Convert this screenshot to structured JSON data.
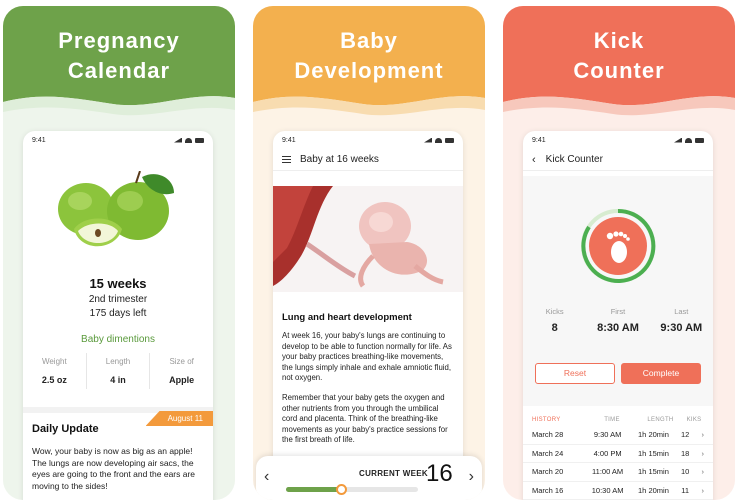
{
  "colors": {
    "green": "#6ea24a",
    "orange": "#f3b04e",
    "coral": "#ef7059"
  },
  "status_time": "9:41",
  "panels": [
    {
      "title_line1": "Pregnancy",
      "title_line2": "Calendar"
    },
    {
      "title_line1": "Baby",
      "title_line2": "Development"
    },
    {
      "title_line1": "Kick",
      "title_line2": "Counter"
    }
  ],
  "calendar": {
    "image_icon": "green-apple-image",
    "week": "15 weeks",
    "trimester": "2nd trimester",
    "days_left": "175 days left",
    "dimensions_link": "Baby dimentions",
    "stats": [
      {
        "label": "Weight",
        "value": "2.5 oz"
      },
      {
        "label": "Length",
        "value": "4 in"
      },
      {
        "label": "Size of",
        "value": "Apple"
      }
    ],
    "update_title": "Daily Update",
    "update_date": "August 11",
    "update_text": "Wow, your baby is now as big as an apple! The lungs are now developing air sacs, the eyes are going to the front and the ears are moving to the sides!"
  },
  "development": {
    "app_title": "Baby at 16 weeks",
    "image_icon": "fetus-illustration",
    "article_title": "Lung and heart development",
    "para1": "At week 16, your baby's lungs are continuing to develop to be able to function normally for life. As your baby practices breathing-like movements, the lungs simply inhale and exhale amniotic fluid, not oxygen.",
    "para2": "Remember that your baby gets the oxygen and other nutrients from you through the umbilical cord and placenta. Think of the breathing-like movements as your baby's practice sessions for the first breath of life.",
    "current_week_label": "CURRENT WEEK",
    "current_week": "16",
    "week_progress": 0.42
  },
  "kick": {
    "app_title": "Kick Counter",
    "foot_icon": "foot-icon",
    "kicks_label": "Kicks",
    "kicks_value": "8",
    "first_label": "First",
    "first_value": "8:30 AM",
    "last_label": "Last",
    "last_value": "9:30 AM",
    "reset_label": "Reset",
    "complete_label": "Complete",
    "history_headers": [
      "HISTORY",
      "TIME",
      "LENGTH",
      "KIKS"
    ],
    "history": [
      {
        "date": "March 28",
        "time": "9:30 AM",
        "length": "1h 20min",
        "kiks": "12"
      },
      {
        "date": "March 24",
        "time": "4:00 PM",
        "length": "1h 15min",
        "kiks": "18"
      },
      {
        "date": "March 20",
        "time": "11:00 AM",
        "length": "1h 15min",
        "kiks": "10"
      },
      {
        "date": "March 16",
        "time": "10:30 AM",
        "length": "1h 20min",
        "kiks": "11"
      }
    ]
  }
}
